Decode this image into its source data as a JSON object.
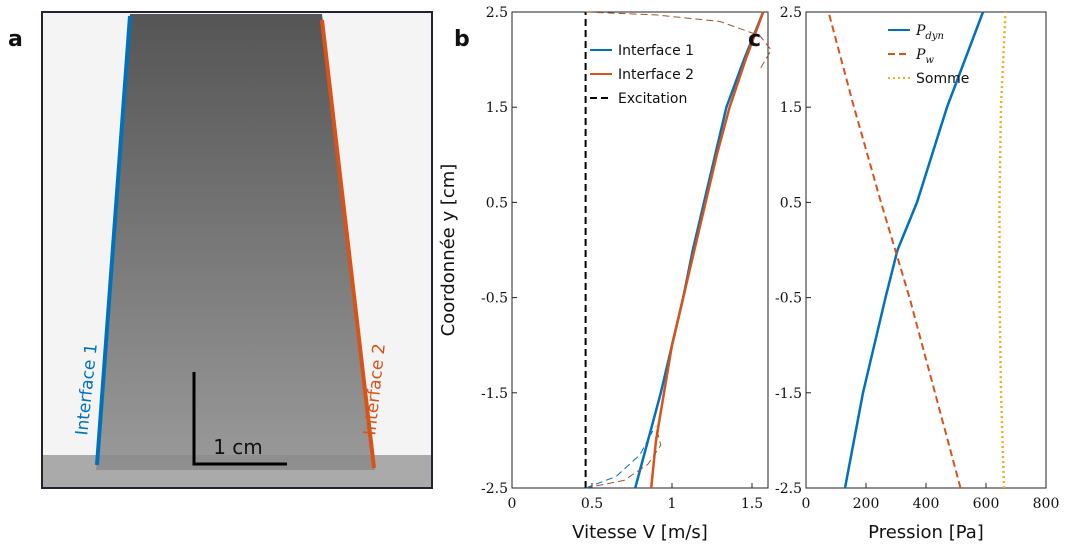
{
  "photo": {
    "label": "a",
    "interface_1": "Interface 1",
    "interface_2": "Interface 2",
    "scale": "1 cm"
  },
  "chart_data": [
    {
      "type": "line",
      "label": "b",
      "xlabel": "Vitesse V [m/s]",
      "ylabel": "Coordonnée y [cm]",
      "xlim": [
        0,
        1.6
      ],
      "ylim": [
        -2.5,
        2.5
      ],
      "xticks": [
        0,
        0.5,
        1,
        1.5
      ],
      "yticks": [
        -2.5,
        -1.5,
        -0.5,
        0.5,
        1.5,
        2.5
      ],
      "series": [
        {
          "name": "Interface 1",
          "color": "#0072bd",
          "style": "solid",
          "x": [
            0.77,
            0.85,
            0.93,
            1.0,
            1.07,
            1.13,
            1.2,
            1.27,
            1.34,
            1.45,
            1.57
          ],
          "y": [
            -2.5,
            -2,
            -1.5,
            -1,
            -0.5,
            0,
            0.5,
            1,
            1.5,
            2,
            2.5
          ]
        },
        {
          "name": "Interface 2",
          "color": "#d95319",
          "style": "solid",
          "x": [
            0.87,
            0.9,
            0.95,
            1.0,
            1.07,
            1.14,
            1.21,
            1.28,
            1.36,
            1.46,
            1.57
          ],
          "y": [
            -2.5,
            -2,
            -1.5,
            -1,
            -0.5,
            0,
            0.5,
            1,
            1.5,
            2,
            2.5
          ]
        },
        {
          "name": "Excitation",
          "color": "#000000",
          "style": "dashed",
          "x": [
            0.46,
            0.46
          ],
          "y": [
            -2.5,
            2.5
          ]
        },
        {
          "color": "#a0522d",
          "style": "dashed",
          "x": [
            0.46,
            0.9,
            1.3,
            1.55,
            1.62,
            1.55
          ],
          "y": [
            2.5,
            2.47,
            2.4,
            2.25,
            2.1,
            1.9
          ]
        },
        {
          "color": "#a0522d",
          "style": "dashed",
          "x": [
            0.46,
            0.7,
            0.85,
            0.93,
            0.9
          ],
          "y": [
            -2.5,
            -2.42,
            -2.25,
            -2.05,
            -1.85
          ]
        },
        {
          "color": "#0072bd",
          "style": "dashed",
          "x": [
            0.46,
            0.65,
            0.8,
            0.88
          ],
          "y": [
            -2.5,
            -2.38,
            -2.15,
            -1.9
          ]
        }
      ]
    },
    {
      "type": "line",
      "label": "c",
      "xlabel": "Pression [Pa]",
      "xlim": [
        0,
        800
      ],
      "ylim": [
        -2.5,
        2.5
      ],
      "xticks": [
        0,
        200,
        400,
        600,
        800
      ],
      "yticks": [
        -2.5,
        -1.5,
        -0.5,
        0.5,
        1.5,
        2.5
      ],
      "series": [
        {
          "name": "P",
          "subscript": "dyn",
          "color": "#0072bd",
          "style": "solid",
          "x": [
            130,
            190,
            265,
            305,
            370,
            470,
            590
          ],
          "y": [
            -2.5,
            -1.5,
            -0.5,
            0,
            0.5,
            1.5,
            2.5
          ]
        },
        {
          "name": "P",
          "subscript": "w",
          "color": "#d95319",
          "style": "dashed",
          "x": [
            515,
            430,
            345,
            250,
            160,
            75
          ],
          "y": [
            -2.5,
            -1.5,
            -0.5,
            0.5,
            1.5,
            2.5
          ]
        },
        {
          "name": "Somme",
          "color": "#edb120",
          "style": "dotted",
          "x": [
            660,
            650,
            645,
            645,
            650,
            665
          ],
          "y": [
            -2.5,
            -1.5,
            -0.5,
            0.5,
            1.5,
            2.5
          ]
        }
      ]
    }
  ]
}
